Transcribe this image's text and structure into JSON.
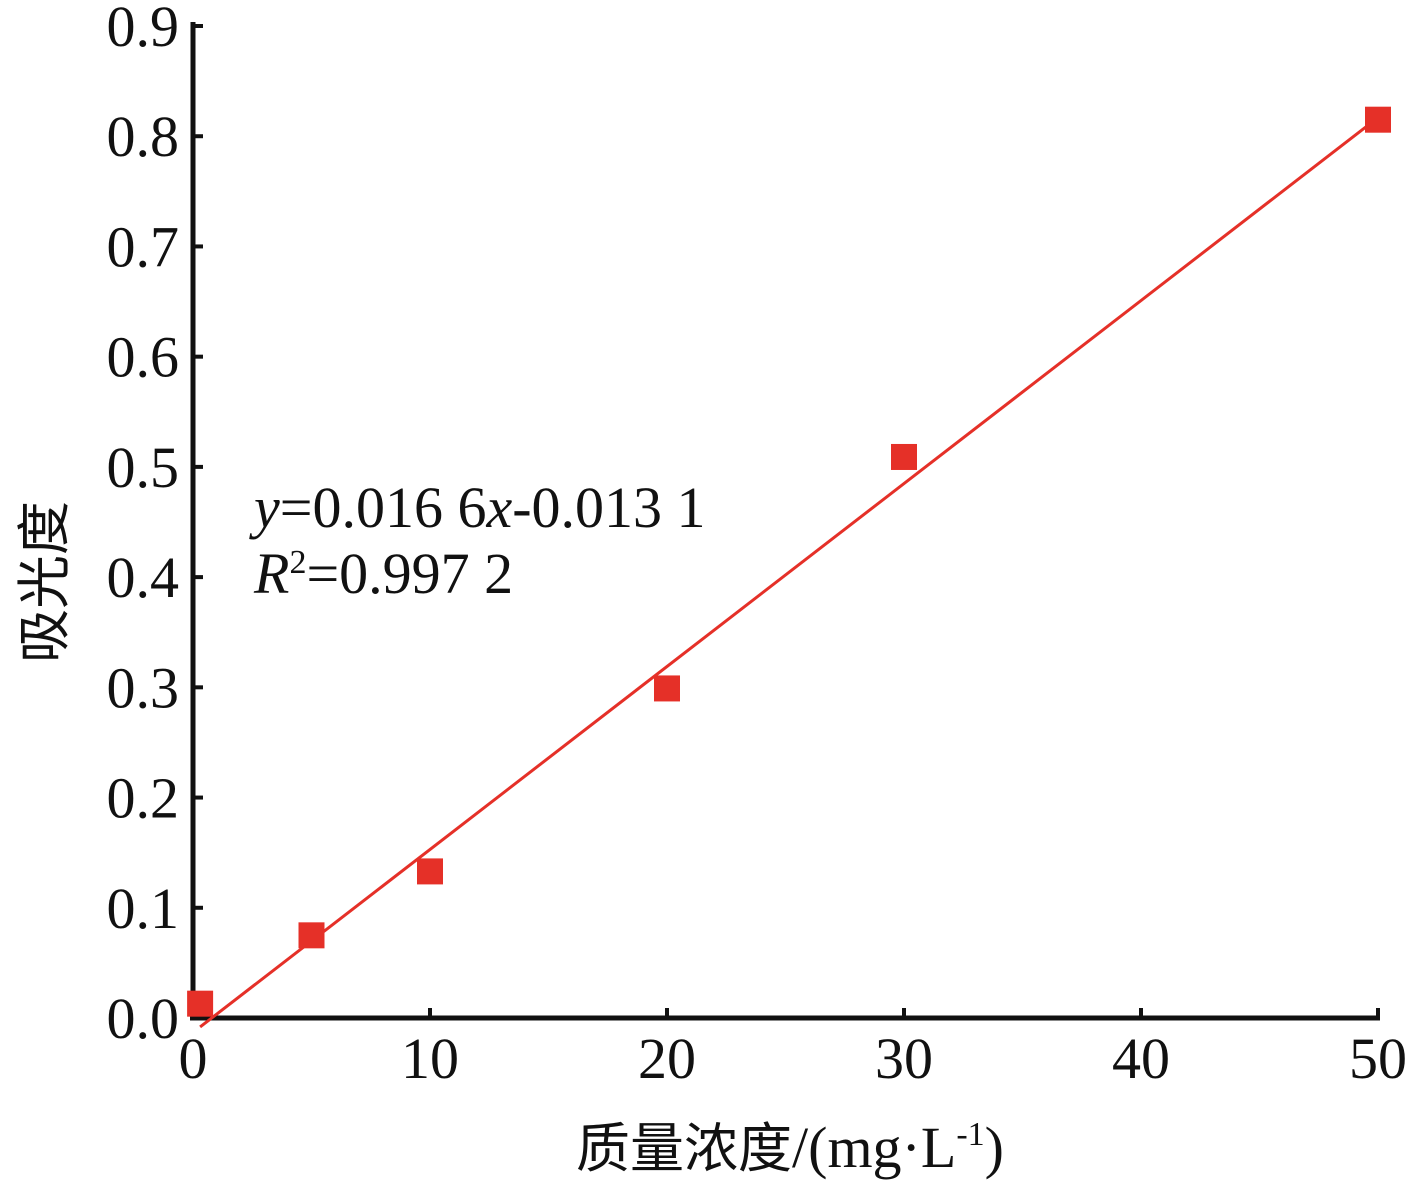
{
  "chart_data": {
    "type": "scatter",
    "xlabel_cn": "质量浓度",
    "xlabel_unit": "/(mg·L",
    "xlabel_sup": "-1",
    "xlabel_close": ")",
    "ylabel": "吸光度",
    "xlim": [
      0,
      50
    ],
    "ylim": [
      0,
      0.9
    ],
    "x_ticks": [
      "0",
      "10",
      "20",
      "30",
      "40",
      "50"
    ],
    "y_ticks": [
      "0.0",
      "0.1",
      "0.2",
      "0.3",
      "0.4",
      "0.5",
      "0.6",
      "0.7",
      "0.8",
      "0.9"
    ],
    "grid": false,
    "series": [
      {
        "points": [
          {
            "x": 0.3,
            "y": 0.013
          },
          {
            "x": 5,
            "y": 0.075
          },
          {
            "x": 10,
            "y": 0.133
          },
          {
            "x": 20,
            "y": 0.299
          },
          {
            "x": 30,
            "y": 0.509
          },
          {
            "x": 50,
            "y": 0.815
          }
        ],
        "color": "#e53028"
      }
    ],
    "fit": {
      "slope": 0.0166,
      "intercept": -0.0131,
      "x_range": [
        0.3,
        50
      ],
      "color": "#e53028"
    },
    "annotation": {
      "eq_y": "y",
      "eq_mid": "=0.016 6",
      "eq_x": "x",
      "eq_tail": "-0.013 1",
      "r_var": "R",
      "r_sup": "2",
      "r_tail": "=0.997 2"
    }
  }
}
